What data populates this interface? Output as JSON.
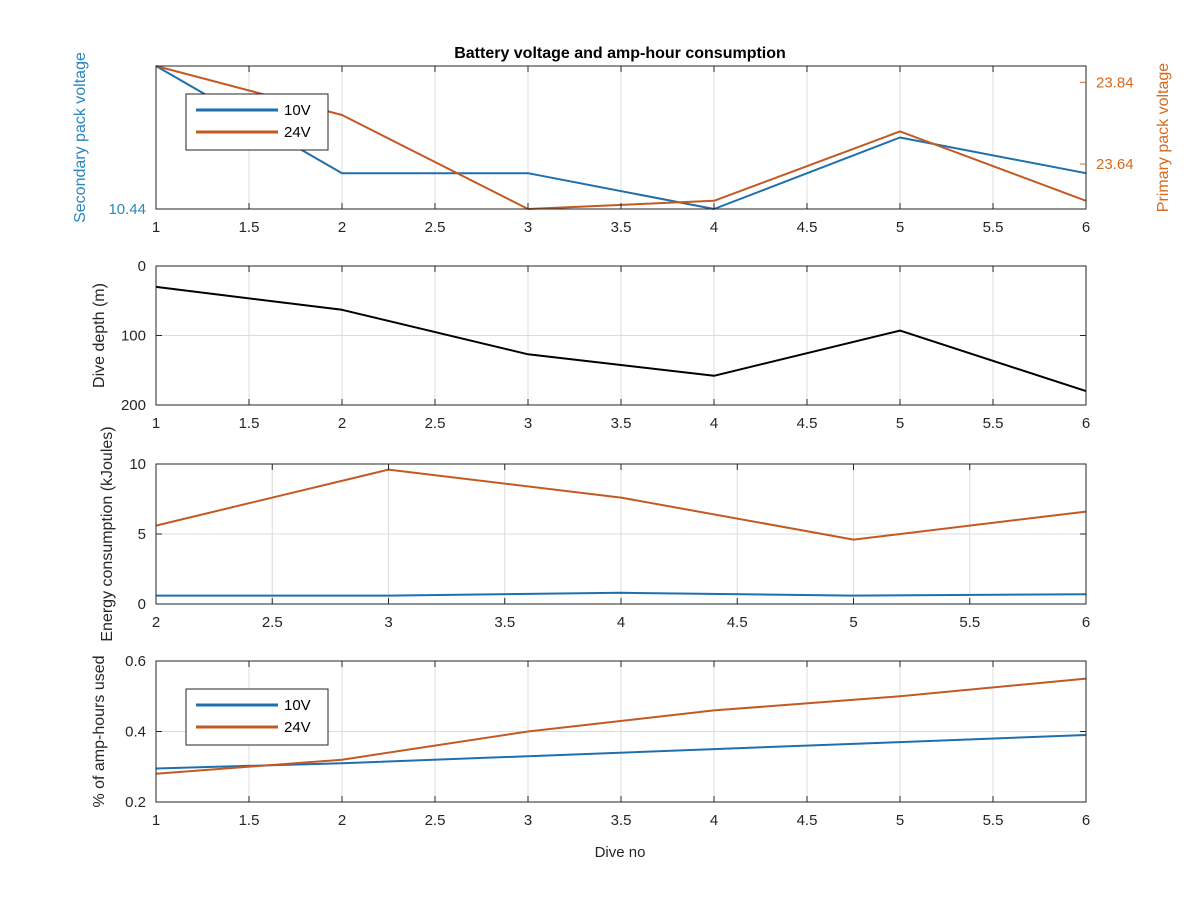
{
  "figure": {
    "title": "Battery voltage and amp-hour consumption",
    "xlabel": "Dive no"
  },
  "colors": {
    "series_10v": "#1f6fad",
    "series_24v": "#c25a23",
    "depth": "#000000",
    "axis": "#262626",
    "grid": "#dcdcdc",
    "left_axis_label": "#2a86c0",
    "right_axis_label": "#d9691e"
  },
  "chart_data": [
    {
      "id": "voltage",
      "type": "line",
      "title": "Battery voltage and amp-hour consumption",
      "xlim": [
        1,
        6
      ],
      "xticks": [
        1,
        1.5,
        2,
        2.5,
        3,
        3.5,
        4,
        4.5,
        5,
        5.5,
        6
      ],
      "grid": true,
      "legend": "top-left",
      "y_left": {
        "label": "Secondary pack voltage",
        "lim": [
          10.44,
          10.52
        ],
        "ticks": [
          10.44
        ]
      },
      "y_right": {
        "label": "Primary pack voltage",
        "lim": [
          23.53,
          23.88
        ],
        "ticks": [
          23.64,
          23.84
        ]
      },
      "series": [
        {
          "name": "10V",
          "axis": "left",
          "x": [
            1,
            2,
            3,
            4,
            5,
            6
          ],
          "y": [
            10.52,
            10.46,
            10.46,
            10.44,
            10.48,
            10.46
          ]
        },
        {
          "name": "24V",
          "axis": "right",
          "x": [
            1,
            2,
            3,
            4,
            5,
            6
          ],
          "y": [
            23.88,
            23.76,
            23.53,
            23.55,
            23.72,
            23.55
          ]
        }
      ]
    },
    {
      "id": "depth",
      "type": "line",
      "xlim": [
        1,
        6
      ],
      "xticks": [
        1,
        1.5,
        2,
        2.5,
        3,
        3.5,
        4,
        4.5,
        5,
        5.5,
        6
      ],
      "grid": true,
      "y_left": {
        "label": "Dive depth (m)",
        "lim": [
          0,
          200
        ],
        "ticks": [
          0,
          100,
          200
        ],
        "reversed": true
      },
      "series": [
        {
          "x": [
            1,
            2,
            3,
            4,
            5,
            6
          ],
          "y": [
            30,
            63,
            127,
            158,
            93,
            180
          ]
        }
      ]
    },
    {
      "id": "energy",
      "type": "line",
      "xlim": [
        2,
        6
      ],
      "xticks": [
        2,
        2.5,
        3,
        3.5,
        4,
        4.5,
        5,
        5.5,
        6
      ],
      "grid": true,
      "y_left": {
        "label": "Energy consumption (kJoules)",
        "lim": [
          0,
          10
        ],
        "ticks": [
          0,
          5,
          10
        ]
      },
      "series": [
        {
          "name": "10V",
          "x": [
            2,
            3,
            4,
            5,
            6
          ],
          "y": [
            0.6,
            0.6,
            0.8,
            0.6,
            0.7
          ]
        },
        {
          "name": "24V",
          "x": [
            2,
            3,
            4,
            5,
            6
          ],
          "y": [
            5.6,
            9.6,
            7.6,
            4.6,
            6.6
          ]
        }
      ]
    },
    {
      "id": "amphours",
      "type": "line",
      "xlim": [
        1,
        6
      ],
      "xticks": [
        1,
        1.5,
        2,
        2.5,
        3,
        3.5,
        4,
        4.5,
        5,
        5.5,
        6
      ],
      "xlabel": "Dive no",
      "grid": true,
      "legend": "bottom-left",
      "y_left": {
        "label": "% of amp-hours used",
        "lim": [
          0.2,
          0.6
        ],
        "ticks": [
          0.2,
          0.4,
          0.6
        ]
      },
      "series": [
        {
          "name": "10V",
          "x": [
            1,
            2,
            3,
            4,
            5,
            6
          ],
          "y": [
            0.295,
            0.31,
            0.33,
            0.35,
            0.37,
            0.39
          ]
        },
        {
          "name": "24V",
          "x": [
            1,
            2,
            3,
            4,
            5,
            6
          ],
          "y": [
            0.28,
            0.32,
            0.4,
            0.46,
            0.5,
            0.55
          ]
        }
      ]
    }
  ]
}
